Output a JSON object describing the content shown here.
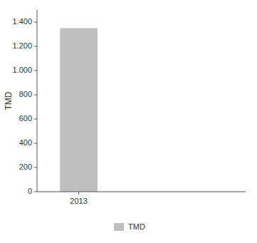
{
  "chart_data": {
    "type": "bar",
    "categories": [
      "2013"
    ],
    "series": [
      {
        "name": "TMD",
        "color": "#BFBFBF",
        "values": [
          1350
        ]
      }
    ],
    "ylabel": "TMD",
    "ylim": [
      0,
      1500
    ],
    "yticks": [
      0,
      200,
      400,
      600,
      800,
      {
        "value": 1000,
        "label": "1.000"
      },
      {
        "value": 1200,
        "label": "1.200"
      },
      {
        "value": 1400,
        "label": "1.400"
      }
    ],
    "grid": false,
    "legend": "bottom"
  }
}
